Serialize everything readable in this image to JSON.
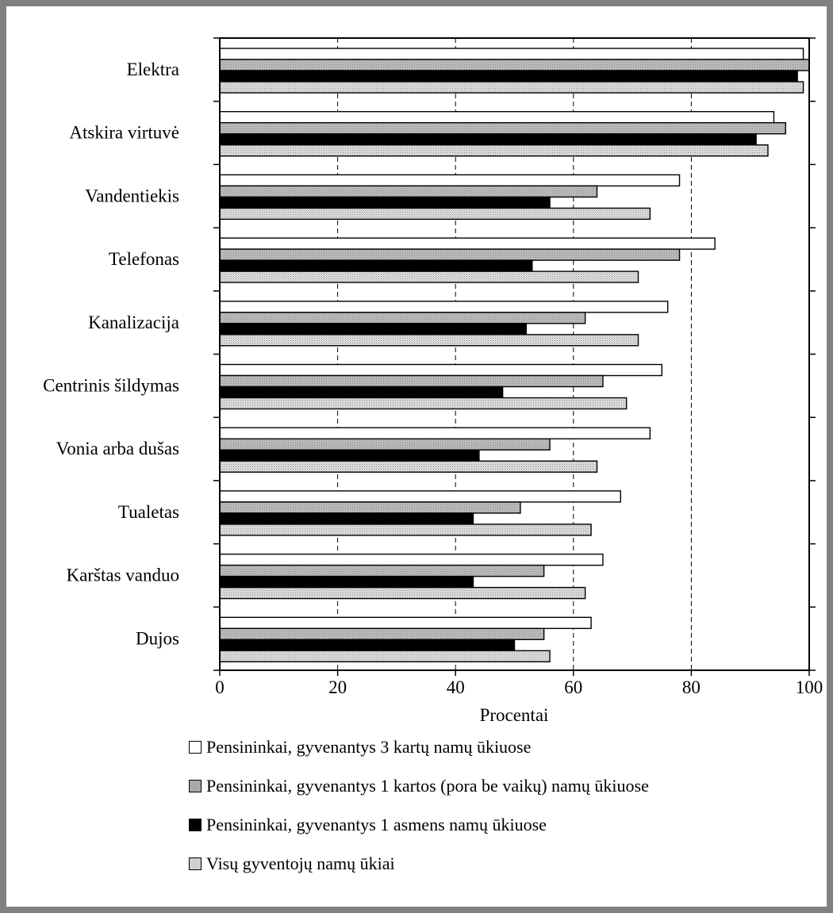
{
  "chart_data": {
    "type": "bar",
    "orientation": "horizontal",
    "categories": [
      "Elektra",
      "Atskira virtuvė",
      "Vandentiekis",
      "Telefonas",
      "Kanalizacija",
      "Centrinis šildymas",
      "Vonia arba dušas",
      "Tualetas",
      "Karštas vanduo",
      "Dujos"
    ],
    "series": [
      {
        "name": "Pensininkai, gyvenantys 3 kartų namų ūkiuose",
        "color": "#ffffff",
        "pattern": "none",
        "values": [
          99,
          94,
          78,
          84,
          76,
          75,
          73,
          68,
          65,
          63
        ]
      },
      {
        "name": "Pensininkai, gyvenantys 1 kartos (pora be vaikų) namų ūkiuose",
        "color": "#b0b0b0",
        "pattern": "fine-hatch",
        "values": [
          100,
          96,
          64,
          78,
          62,
          65,
          56,
          51,
          55,
          55
        ]
      },
      {
        "name": "Pensininkai, gyvenantys 1 asmens namų ūkiuose",
        "color": "#000000",
        "pattern": "none",
        "values": [
          98,
          91,
          56,
          53,
          52,
          48,
          44,
          43,
          43,
          50
        ]
      },
      {
        "name": "Visų gyventojų namų ūkiai",
        "color": "#c8c8c8",
        "pattern": "dots",
        "values": [
          99,
          93,
          73,
          71,
          71,
          69,
          64,
          63,
          62,
          56
        ]
      }
    ],
    "xlabel": "Procentai",
    "xlim": [
      0,
      100
    ],
    "xticks": [
      0,
      20,
      40,
      60,
      80,
      100
    ],
    "grid": "vertical dashed",
    "legend_position": "bottom"
  }
}
